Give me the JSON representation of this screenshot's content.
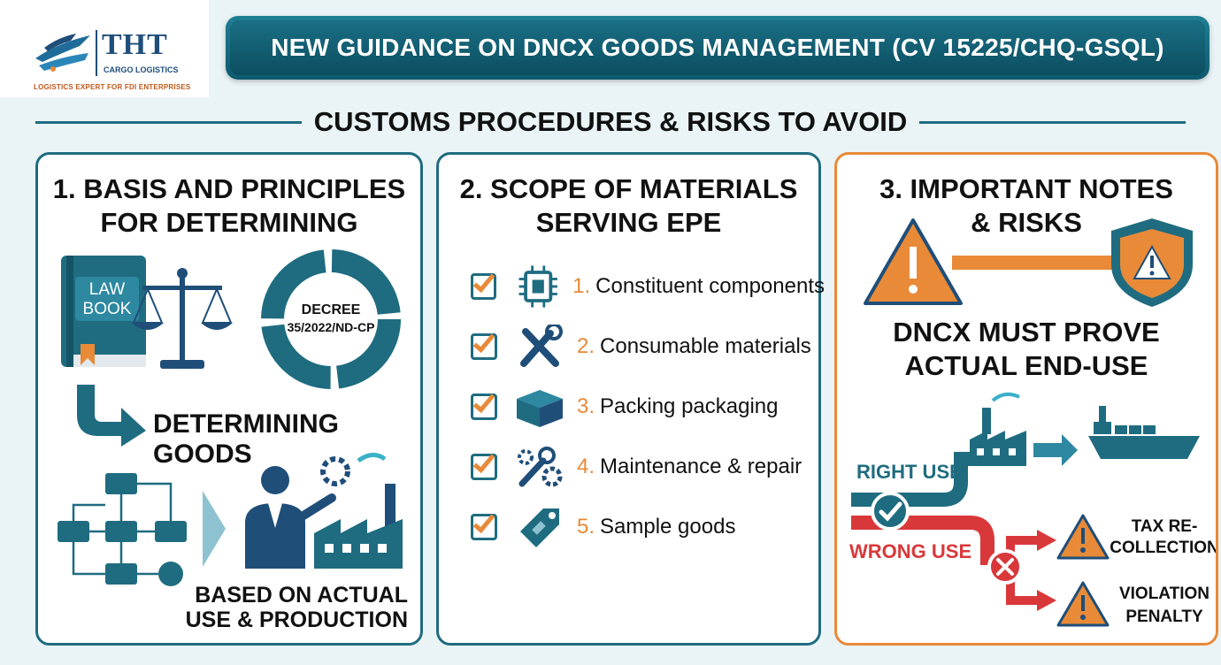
{
  "logo": {
    "name": "THT",
    "sub": "CARGO LOGISTICS",
    "tagline": "LOGISTICS EXPERT FOR FDI ENTERPRISES"
  },
  "banner": {
    "title": "NEW GUIDANCE ON DNCX GOODS MANAGEMENT (CV 15225/CHQ-GSQL)"
  },
  "subheading": "CUSTOMS PROCEDURES & RISKS TO AVOID",
  "colors": {
    "teal": "#1f6c80",
    "orange": "#e88a38",
    "red": "#d9383a"
  },
  "panel1": {
    "title_line1": "1. BASIS AND PRINCIPLES",
    "title_line2": "FOR DETERMINING",
    "book_line1": "LAW",
    "book_line2": "BOOK",
    "decree_line1": "DECREE",
    "decree_line2": "35/2022/ND-CP",
    "determining": "DETERMINING GOODS",
    "based_line1": "BASED ON ACTUAL",
    "based_line2": "USE & PRODUCTION"
  },
  "panel2": {
    "title_line1": "2. SCOPE OF MATERIALS",
    "title_line2": "SERVING EPE",
    "items": [
      {
        "num": "1.",
        "label": "Constituent components",
        "icon": "chip-icon"
      },
      {
        "num": "2.",
        "label": "Consumable materials",
        "icon": "tools-icon"
      },
      {
        "num": "3.",
        "label": "Packing packaging",
        "icon": "box-icon"
      },
      {
        "num": "4.",
        "label": "Maintenance & repair",
        "icon": "wrench-gear-icon"
      },
      {
        "num": "5.",
        "label": "Sample goods",
        "icon": "tag-icon"
      }
    ]
  },
  "panel3": {
    "title_line1": "3. IMPORTANT NOTES",
    "title_line2": "& RISKS",
    "prove_line1": "DNCX MUST PROVE",
    "prove_line2": "ACTUAL END-USE",
    "right_use": "RIGHT USE",
    "wrong_use": "WRONG USE",
    "risk1_line1": "TAX RE-",
    "risk1_line2": "COLLECTION",
    "risk2_line1": "VIOLATION",
    "risk2_line2": "PENALTY"
  }
}
